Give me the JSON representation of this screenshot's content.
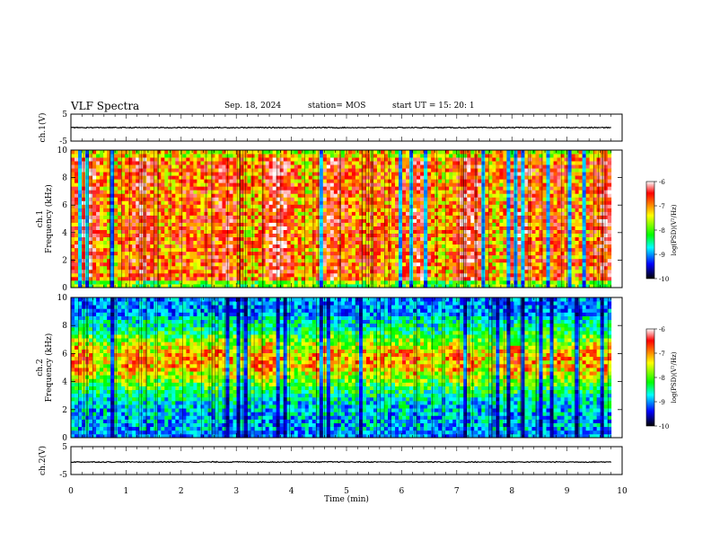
{
  "header": {
    "title": "VLF Spectra",
    "date": "Sep. 18, 2024",
    "station": "station= MOS",
    "start": "start  UT =   15: 20: 1"
  },
  "chart_data": [
    {
      "type": "line",
      "panel": "ch1-waveform",
      "ylabel": "ch.1(V)",
      "ylim": [
        -5,
        5
      ],
      "yticks": [
        "5",
        "-5"
      ],
      "x": [
        0,
        1,
        2,
        3,
        4,
        5,
        6,
        7,
        8,
        9,
        9.8
      ],
      "values": [
        0,
        0,
        0,
        0,
        0,
        0,
        0,
        0,
        0,
        0,
        0
      ]
    },
    {
      "type": "heatmap",
      "panel": "ch1-spectrogram",
      "ylabel_top": "ch.1",
      "ylabel": "Frequency (kHz)",
      "xlim": [
        0,
        10
      ],
      "ylim": [
        0,
        10
      ],
      "yticks": [
        "0",
        "2",
        "4",
        "6",
        "8",
        "10"
      ],
      "data_end_min": 9.8,
      "colorbar": {
        "label": "log(PSD)(V²/Hz)",
        "range": [
          -10,
          -6
        ],
        "ticks": [
          "-6",
          "-7",
          "-8",
          "-9",
          "-10"
        ],
        "colors": [
          "#ffffff",
          "#ff0000",
          "#ffff00",
          "#00ff00",
          "#00ffff",
          "#0000ff",
          "#000000"
        ]
      }
    },
    {
      "type": "heatmap",
      "panel": "ch2-spectrogram",
      "ylabel_top": "ch.2",
      "ylabel": "Frequency (kHz)",
      "xlim": [
        0,
        10
      ],
      "ylim": [
        0,
        10
      ],
      "yticks": [
        "0",
        "2",
        "4",
        "6",
        "8",
        "10"
      ],
      "data_end_min": 9.8,
      "colorbar": {
        "label": "log(PSD)(V²/Hz)",
        "range": [
          -10,
          -6
        ],
        "ticks": [
          "-6",
          "-7",
          "-8",
          "-9",
          "-10"
        ],
        "colors": [
          "#ffffff",
          "#ff0000",
          "#ffff00",
          "#00ff00",
          "#00ffff",
          "#0000ff",
          "#000000"
        ]
      }
    },
    {
      "type": "line",
      "panel": "ch2-waveform",
      "ylabel": "ch.2(V)",
      "ylim": [
        -5,
        5
      ],
      "yticks": [
        "5",
        "-5"
      ],
      "x": [
        0,
        1,
        2,
        3,
        4,
        5,
        6,
        7,
        8,
        9,
        9.8
      ],
      "values": [
        -0.5,
        -0.5,
        -0.5,
        -0.5,
        -0.5,
        -0.5,
        -0.5,
        -0.5,
        -0.5,
        -0.5,
        -0.5
      ]
    }
  ],
  "xaxis": {
    "label": "Time  (min)",
    "ticks": [
      "0",
      "1",
      "2",
      "3",
      "4",
      "5",
      "6",
      "7",
      "8",
      "9",
      "10"
    ]
  }
}
